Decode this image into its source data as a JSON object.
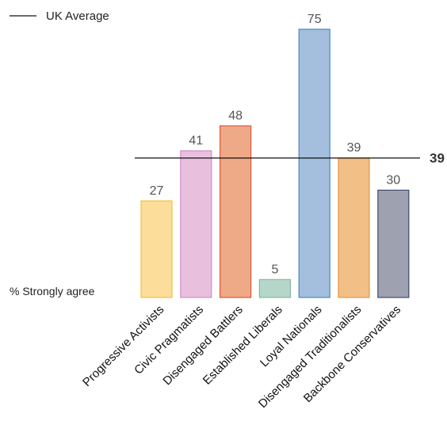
{
  "chart_data": {
    "type": "bar",
    "categories": [
      "Progressive Activists",
      "Civic Pragmatists",
      "Disengaged Battlers",
      "Established Liberals",
      "Loyal Nationals",
      "Disengaged Traditionalists",
      "Backbone Conservatives"
    ],
    "values": [
      27,
      41,
      48,
      5,
      75,
      39,
      30
    ],
    "value_labels": [
      "27",
      "41",
      "48",
      "5",
      "75",
      "39",
      "30"
    ],
    "ylabel": "% Strongly agree",
    "ylim": [
      0,
      75
    ],
    "reference_line": {
      "name": "UK Average",
      "value": 39,
      "label": "39"
    },
    "legend": {
      "position": "top-left",
      "entries": [
        "UK Average"
      ]
    },
    "grid": false,
    "colors": {
      "fills": [
        "#fcdd9a",
        "#e8c0de",
        "#eea987",
        "#b5d7ca",
        "#a3bfdd",
        "#f2bf86",
        "#9ea2b0"
      ],
      "strokes": [
        "#f3c23e",
        "#d48ec6",
        "#e0553e",
        "#83b9a3",
        "#4e85c1",
        "#e9953c",
        "#3f4a6d"
      ],
      "line": "#111111"
    }
  }
}
